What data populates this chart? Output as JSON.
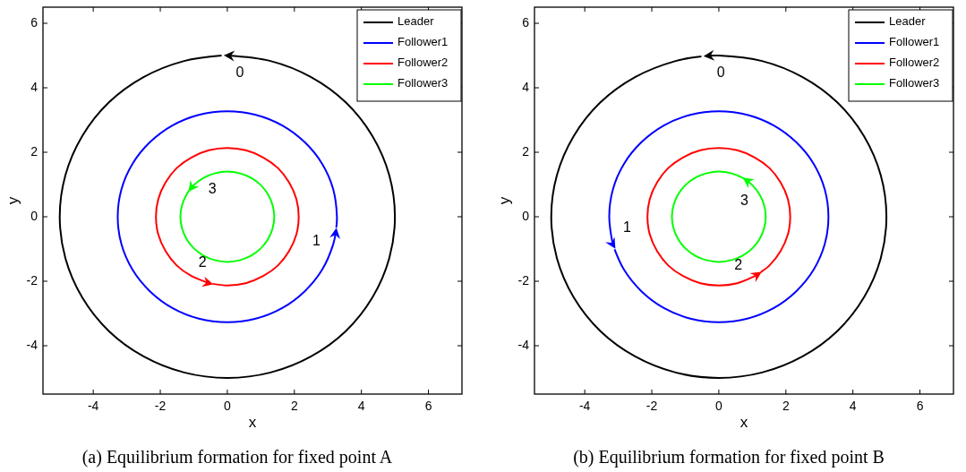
{
  "chart_data": [
    {
      "type": "line",
      "title": "(a) Equilibrium formation for fixed point A",
      "xlabel": "x",
      "ylabel": "y",
      "xlim": [
        -5.5,
        7
      ],
      "ylim": [
        -5.5,
        6.5
      ],
      "xticks": [
        -4,
        -2,
        0,
        2,
        4,
        6
      ],
      "yticks": [
        -4,
        -2,
        0,
        2,
        4,
        6
      ],
      "legend": "top right",
      "series": [
        {
          "name": "Leader",
          "color": "#000000",
          "x": [
            -0.17,
            -1.29,
            -2.5,
            -3.54,
            -4.33,
            -4.83,
            -5,
            -4.83,
            -4.33,
            -3.54,
            -2.5,
            -1.29,
            0,
            1.29,
            2.5,
            3.54,
            4.33,
            4.83,
            5,
            4.83,
            4.33,
            3.54,
            2.5,
            1.29,
            0
          ],
          "values": [
            5,
            4.83,
            4.33,
            3.54,
            2.5,
            1.29,
            0,
            -1.29,
            -2.5,
            -3.54,
            -4.33,
            -4.83,
            -5,
            -4.83,
            -4.33,
            -3.54,
            -2.5,
            -1.29,
            0,
            1.29,
            2.5,
            3.54,
            4.33,
            4.83,
            5
          ]
        },
        {
          "name": "Follower1",
          "color": "#0000ff",
          "x": [
            3.25,
            3.27,
            3.16,
            2.83,
            2.31,
            1.64,
            0.85,
            0,
            -0.85,
            -1.64,
            -2.31,
            -2.83,
            -3.16,
            -3.27,
            -3.16,
            -2.83,
            -2.31,
            -1.64,
            -0.85,
            0,
            0.85,
            1.64,
            2.31,
            2.83,
            3.16,
            3.24
          ],
          "values": [
            -0.34,
            0,
            0.85,
            1.64,
            2.31,
            2.83,
            3.16,
            3.27,
            3.16,
            2.83,
            2.31,
            1.64,
            0.85,
            0,
            -0.85,
            -1.64,
            -2.31,
            -2.83,
            -3.16,
            -3.27,
            -3.16,
            -2.83,
            -2.31,
            -1.64,
            -0.85,
            -0.45
          ]
        },
        {
          "name": "Follower2",
          "color": "#ff0000",
          "x": [
            -0.44,
            0,
            0.55,
            1.07,
            1.51,
            1.84,
            2.06,
            2.13,
            2.06,
            1.84,
            1.51,
            1.07,
            0.55,
            0,
            -0.55,
            -1.07,
            -1.51,
            -1.84,
            -2.06,
            -2.13,
            -2.06,
            -1.84,
            -1.51,
            -1.07,
            -0.55,
            -0.52
          ],
          "values": [
            -2.08,
            -2.13,
            -2.06,
            -1.84,
            -1.51,
            -1.07,
            -0.55,
            0,
            0.55,
            1.07,
            1.51,
            1.84,
            2.06,
            2.13,
            2.06,
            1.84,
            1.51,
            1.07,
            0.55,
            0,
            -0.55,
            -1.07,
            -1.51,
            -1.84,
            -2.06,
            -2.07
          ]
        },
        {
          "name": "Follower3",
          "color": "#00ff00",
          "x": [
            -1.13,
            -1.21,
            -1.35,
            -1.4,
            -1.35,
            -1.21,
            -0.99,
            -0.7,
            -0.36,
            0,
            0.36,
            0.7,
            0.99,
            1.21,
            1.35,
            1.4,
            1.35,
            1.21,
            0.99,
            0.7,
            0.36,
            0,
            -0.36,
            -0.7,
            -0.99,
            -1.1
          ],
          "values": [
            0.82,
            0.7,
            0.36,
            0,
            -0.36,
            -0.7,
            -0.99,
            -1.21,
            -1.35,
            -1.4,
            -1.35,
            -1.21,
            -0.99,
            -0.7,
            -0.36,
            0,
            0.36,
            0.7,
            0.99,
            1.21,
            1.35,
            1.4,
            1.35,
            1.21,
            0.99,
            0.86
          ]
        }
      ],
      "annotations": [
        {
          "text": "0",
          "x": 0,
          "y": 5
        },
        {
          "text": "1",
          "x": 3.24,
          "y": -0.45
        },
        {
          "text": "2",
          "x": -0.52,
          "y": -2.07
        },
        {
          "text": "3",
          "x": -1.1,
          "y": 0.86
        }
      ]
    },
    {
      "type": "line",
      "title": "(b) Equilibrium formation for fixed point B",
      "xlabel": "x",
      "ylabel": "y",
      "xlim": [
        -5.5,
        7
      ],
      "ylim": [
        -5.5,
        6.5
      ],
      "xticks": [
        -4,
        -2,
        0,
        2,
        4,
        6
      ],
      "yticks": [
        -4,
        -2,
        0,
        2,
        4,
        6
      ],
      "legend": "top right",
      "series": [
        {
          "name": "Leader",
          "color": "#000000",
          "x": [
            -0.52,
            -1.29,
            -2.5,
            -3.54,
            -4.33,
            -4.83,
            -5,
            -4.83,
            -4.33,
            -3.54,
            -2.5,
            -1.29,
            0,
            1.29,
            2.5,
            3.54,
            4.33,
            4.83,
            5,
            4.83,
            4.33,
            3.54,
            2.5,
            1.29,
            0,
            -0.35
          ],
          "values": [
            4.97,
            4.83,
            4.33,
            3.54,
            2.5,
            1.29,
            0,
            -1.29,
            -2.5,
            -3.54,
            -4.33,
            -4.83,
            -5,
            -4.83,
            -4.33,
            -3.54,
            -2.5,
            -1.29,
            0,
            1.29,
            2.5,
            3.54,
            4.33,
            4.83,
            5,
            4.99
          ]
        },
        {
          "name": "Follower1",
          "color": "#0000ff",
          "x": [
            -3.11,
            -2.83,
            -2.31,
            -1.64,
            -0.85,
            0,
            0.85,
            1.64,
            2.31,
            2.83,
            3.16,
            3.27,
            3.16,
            2.83,
            2.31,
            1.64,
            0.85,
            0,
            -0.85,
            -1.64,
            -2.31,
            -2.83,
            -3.16,
            -3.27,
            -3.16,
            -3.14
          ],
          "values": [
            -1.01,
            -1.64,
            -2.31,
            -2.83,
            -3.16,
            -3.27,
            -3.16,
            -2.83,
            -2.31,
            -1.64,
            -0.85,
            0,
            0.85,
            1.64,
            2.31,
            2.83,
            3.16,
            3.27,
            3.16,
            2.83,
            2.31,
            1.64,
            0.85,
            0,
            -0.85,
            -0.9
          ]
        },
        {
          "name": "Follower2",
          "color": "#ff0000",
          "x": [
            1.25,
            1.51,
            1.84,
            2.06,
            2.13,
            2.06,
            1.84,
            1.51,
            1.07,
            0.55,
            0,
            -0.55,
            -1.07,
            -1.51,
            -1.84,
            -2.06,
            -2.13,
            -2.06,
            -1.84,
            -1.51,
            -1.07,
            -0.55,
            0,
            0.55,
            1.07,
            1.19
          ],
          "values": [
            -1.72,
            -1.51,
            -1.07,
            -0.55,
            0,
            0.55,
            1.07,
            1.51,
            1.84,
            2.06,
            2.13,
            2.06,
            1.84,
            1.51,
            1.07,
            0.55,
            0,
            -0.55,
            -1.07,
            -1.51,
            -1.84,
            -2.06,
            -2.13,
            -2.06,
            -1.84,
            -1.77
          ]
        },
        {
          "name": "Follower3",
          "color": "#00ff00",
          "x": [
            0.76,
            0.7,
            0.36,
            0,
            -0.36,
            -0.7,
            -0.99,
            -1.21,
            -1.35,
            -1.4,
            -1.35,
            -1.21,
            -0.99,
            -0.7,
            -0.36,
            0,
            0.36,
            0.7,
            0.99,
            1.21,
            1.35,
            1.4,
            1.35,
            1.21,
            0.99,
            0.8
          ],
          "values": [
            1.17,
            1.21,
            1.35,
            1.4,
            1.35,
            1.21,
            0.99,
            0.7,
            0.36,
            0,
            -0.36,
            -0.7,
            -0.99,
            -1.21,
            -1.35,
            -1.4,
            -1.35,
            -1.21,
            -0.99,
            -0.7,
            -0.36,
            0,
            0.36,
            0.7,
            0.99,
            1.15
          ]
        }
      ],
      "annotations": [
        {
          "text": "0",
          "x": -0.35,
          "y": 4.99
        },
        {
          "text": "1",
          "x": -3.14,
          "y": -0.9
        },
        {
          "text": "2",
          "x": 1.19,
          "y": -1.77
        },
        {
          "text": "3",
          "x": 0.8,
          "y": 1.15
        }
      ]
    }
  ]
}
